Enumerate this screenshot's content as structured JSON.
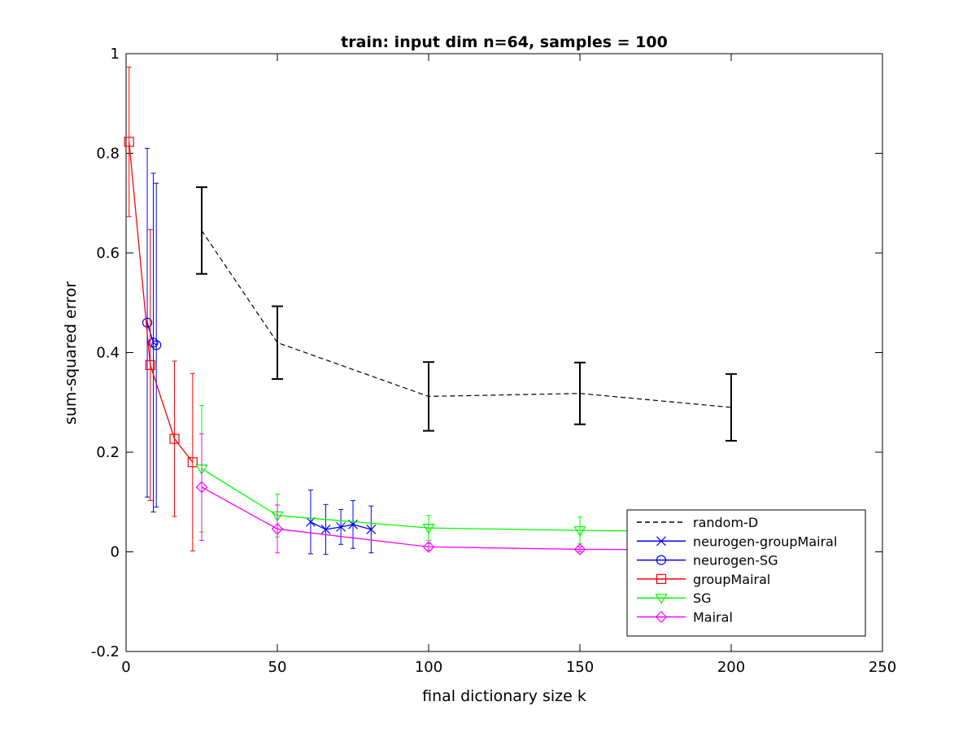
{
  "chart_data": {
    "type": "line",
    "title": "train: input dim n=64, samples = 100",
    "xlabel": "final dictionary size k",
    "ylabel": "sum-squared error",
    "xlim": [
      0,
      250
    ],
    "ylim": [
      -0.2,
      1
    ],
    "xticks": [
      0,
      50,
      100,
      150,
      200,
      250
    ],
    "yticks": [
      -0.2,
      0,
      0.2,
      0.4,
      0.6,
      0.8,
      1
    ],
    "xtick_labels": [
      "0",
      "50",
      "100",
      "150",
      "200",
      "250"
    ],
    "ytick_labels": [
      "-0.2",
      "0",
      "0.2",
      "0.4",
      "0.6",
      "0.8",
      "1"
    ],
    "grid": false,
    "legend_position": "bottom-right",
    "series": [
      {
        "name": "random-D",
        "color": "#000000",
        "line": "dashed",
        "marker": "none",
        "x": [
          25,
          50,
          100,
          150,
          200
        ],
        "y": [
          0.645,
          0.42,
          0.312,
          0.318,
          0.29
        ],
        "err": [
          0.087,
          0.073,
          0.069,
          0.062,
          0.067
        ]
      },
      {
        "name": "neurogen-groupMairal",
        "color": "#0000ff",
        "line": "solid",
        "marker": "x",
        "x": [
          61,
          66,
          71,
          75,
          81
        ],
        "y": [
          0.06,
          0.045,
          0.05,
          0.055,
          0.045
        ],
        "err": [
          0.064,
          0.05,
          0.035,
          0.048,
          0.047
        ]
      },
      {
        "name": "neurogen-SG",
        "color": "#0000ff",
        "line": "solid",
        "marker": "o",
        "x": [
          7,
          9,
          10
        ],
        "y": [
          0.46,
          0.42,
          0.415
        ],
        "err": [
          0.35,
          0.34,
          0.325
        ]
      },
      {
        "name": "groupMairal",
        "color": "#ff0000",
        "line": "solid",
        "marker": "square",
        "x": [
          1,
          8,
          16,
          22
        ],
        "y": [
          0.823,
          0.375,
          0.227,
          0.18
        ],
        "err": [
          0.15,
          0.272,
          0.156,
          0.178
        ]
      },
      {
        "name": "SG",
        "color": "#00ff00",
        "line": "solid",
        "marker": "triangle-down",
        "x": [
          25,
          50,
          100,
          150,
          200
        ],
        "y": [
          0.167,
          0.073,
          0.048,
          0.043,
          0.04
        ],
        "err": [
          0.127,
          0.043,
          0.025,
          0.027,
          0.025
        ]
      },
      {
        "name": "Mairal",
        "color": "#ff00ff",
        "line": "solid",
        "marker": "diamond",
        "x": [
          25,
          50,
          100,
          150,
          200
        ],
        "y": [
          0.13,
          0.046,
          0.01,
          0.005,
          0.004
        ],
        "err": [
          0.107,
          0.048,
          0.007,
          0.005,
          0.004
        ]
      }
    ]
  }
}
